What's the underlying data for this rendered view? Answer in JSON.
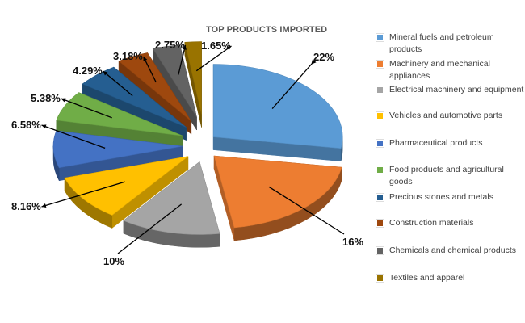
{
  "chart_data": {
    "type": "pie",
    "style": "3d-exploded",
    "title": "TOP PRODUCTS IMPORTED",
    "legend_position": "right",
    "slices": [
      {
        "name": "Mineral fuels and petroleum products",
        "value": 22,
        "label": "22%",
        "color": "#5b9bd5"
      },
      {
        "name": "Machinery and mechanical appliances",
        "value": 16,
        "label": "16%",
        "color": "#ed7d31"
      },
      {
        "name": "Electrical machinery and equipment",
        "value": 10,
        "label": "10%",
        "color": "#a5a5a5"
      },
      {
        "name": "Vehicles and automotive parts",
        "value": 8.16,
        "label": "8.16%",
        "color": "#ffc000"
      },
      {
        "name": "Pharmaceutical products",
        "value": 6.58,
        "label": "6.58%",
        "color": "#4472c4"
      },
      {
        "name": "Food products and agricultural goods",
        "value": 5.38,
        "label": "5.38%",
        "color": "#70ad47"
      },
      {
        "name": "Precious stones and metals",
        "value": 4.29,
        "label": "4.29%",
        "color": "#255e91"
      },
      {
        "name": "Construction materials",
        "value": 3.18,
        "label": "3.18%",
        "color": "#9e480e"
      },
      {
        "name": "Chemicals and chemical products",
        "value": 2.75,
        "label": "2.75%",
        "color": "#636363"
      },
      {
        "name": "Textiles and apparel",
        "value": 1.65,
        "label": "1.65%",
        "color": "#997300"
      }
    ]
  }
}
